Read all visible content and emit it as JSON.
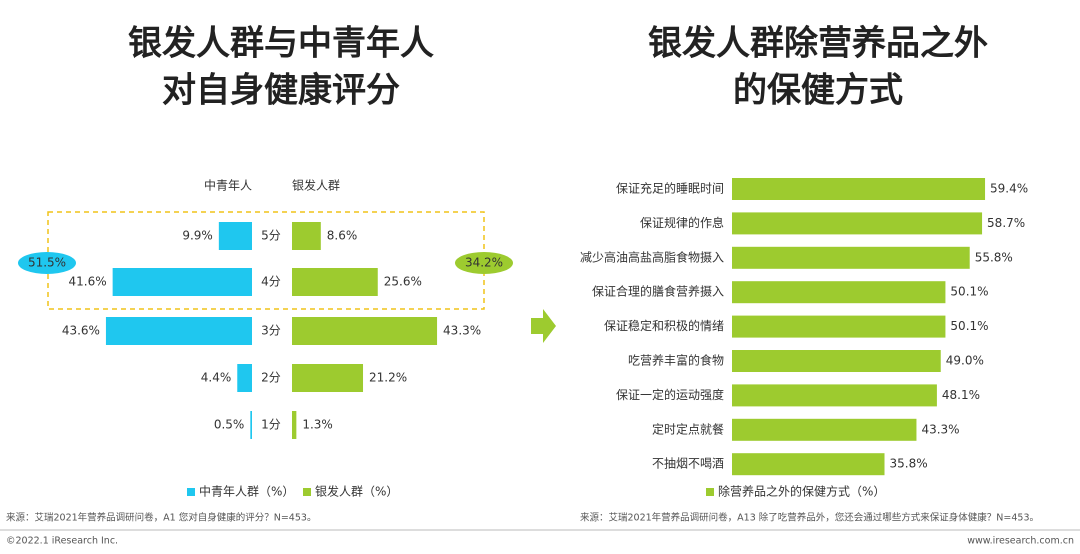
{
  "chart_data": [
    {
      "type": "butterfly",
      "title": [
        "银发人群与中青年人",
        "对自身健康评分"
      ],
      "column_headers": [
        "中青年人",
        "银发人群"
      ],
      "categories": [
        "5分",
        "4分",
        "3分",
        "2分",
        "1分"
      ],
      "series": [
        {
          "name": "中青年人群（%）",
          "color": "#1fc7ef",
          "values": [
            9.9,
            41.6,
            43.6,
            4.4,
            0.5
          ],
          "value_labels": [
            "9.9%",
            "41.6%",
            "43.6%",
            "4.4%",
            "0.5%"
          ]
        },
        {
          "name": "银发人群（%）",
          "color": "#9dcb2f",
          "values": [
            8.6,
            25.6,
            43.3,
            21.2,
            1.3
          ],
          "value_labels": [
            "8.6%",
            "25.6%",
            "43.3%",
            "21.2%",
            "1.3%"
          ]
        }
      ],
      "annotations": [
        "51.5%",
        "34.2%"
      ],
      "source": "来源：艾瑞2021年营养品调研问卷，A1 您对自身健康的评分？N=453。"
    },
    {
      "type": "barh",
      "title": [
        "银发人群除营养品之外",
        "的保健方式"
      ],
      "categories": [
        "保证充足的睡眠时间",
        "保证规律的作息",
        "减少高油高盐高脂食物摄入",
        "保证合理的膳食营养摄入",
        "保证稳定和积极的情绪",
        "吃营养丰富的食物",
        "保证一定的运动强度",
        "定时定点就餐",
        "不抽烟不喝酒"
      ],
      "series": [
        {
          "name": "除营养品之外的保健方式（%）",
          "color": "#9dcb2f",
          "values": [
            59.4,
            58.7,
            55.8,
            50.1,
            50.1,
            49.0,
            48.1,
            43.3,
            35.8
          ],
          "value_labels": [
            "59.4%",
            "58.7%",
            "55.8%",
            "50.1%",
            "50.1%",
            "49.0%",
            "48.1%",
            "43.3%",
            "35.8%"
          ]
        }
      ],
      "source": "来源：艾瑞2021年营养品调研问卷，A13 除了吃营养品外，您还会通过哪些方式来保证身体健康？N=453。"
    }
  ],
  "footer": {
    "copyright": "©2022.1 iResearch Inc.",
    "site": "www.iresearch.com.cn"
  }
}
